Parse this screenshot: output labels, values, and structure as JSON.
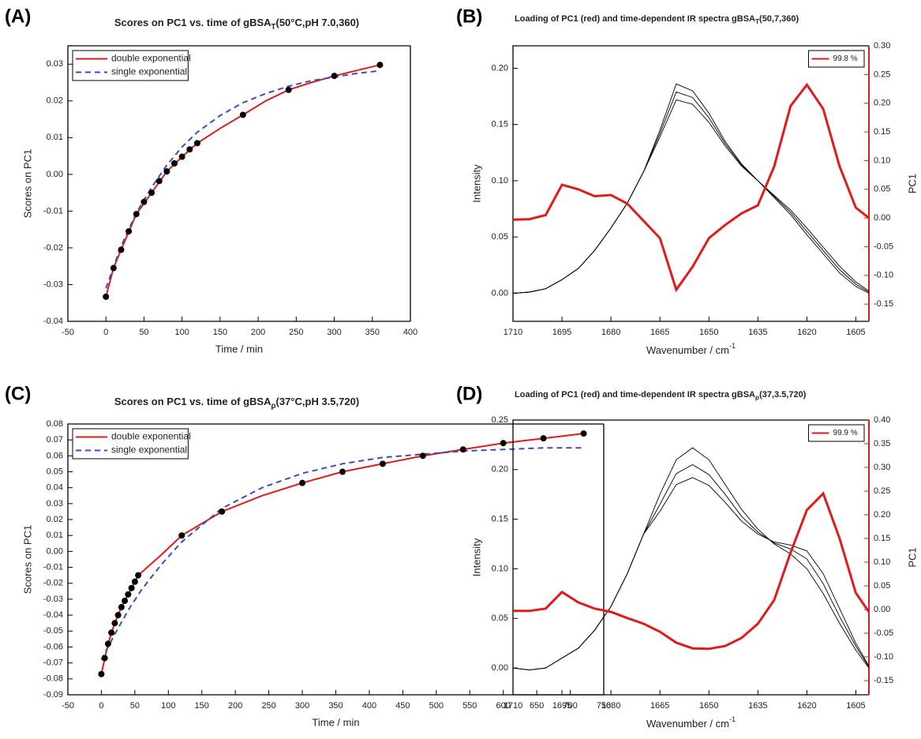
{
  "chart_data": [
    {
      "type": "scatter",
      "label": "(A)",
      "title_parts": [
        "Scores on PC1 vs. time of gBSA",
        "T",
        "(50°C,pH 7.0,360)"
      ],
      "xlabel": "Time / min",
      "ylabel": "Scores on PC1",
      "xlim": [
        -50,
        400
      ],
      "xticks": [
        -50,
        0,
        50,
        100,
        150,
        200,
        250,
        300,
        350,
        400
      ],
      "ylim": [
        -0.04,
        0.035
      ],
      "yticks": [
        -0.04,
        -0.03,
        -0.02,
        -0.01,
        {
          "value": 0,
          "label": "0.00"
        },
        0.01,
        0.02,
        0.03
      ],
      "legend": "upper left",
      "points": {
        "color": "#000000",
        "x": [
          0,
          10,
          20,
          30,
          40,
          50,
          60,
          70,
          80,
          90,
          100,
          110,
          120,
          180,
          240,
          300,
          360
        ],
        "values": [
          -0.0333,
          -0.0255,
          -0.0205,
          -0.0155,
          -0.0108,
          -0.0075,
          -0.005,
          -0.0018,
          0.0008,
          0.003,
          0.0048,
          0.0068,
          0.0085,
          0.0162,
          0.023,
          0.0268,
          0.0298
        ]
      },
      "series": [
        {
          "name": "double exponential",
          "color": "#e31a1c",
          "style": "solid",
          "x": [
            0,
            10,
            20,
            40,
            60,
            80,
            100,
            120,
            150,
            180,
            210,
            240,
            270,
            300,
            330,
            360
          ],
          "values": [
            -0.0333,
            -0.0255,
            -0.0205,
            -0.0108,
            -0.005,
            0.0008,
            0.0048,
            0.0085,
            0.0125,
            0.0162,
            0.02,
            0.023,
            0.025,
            0.0268,
            0.0283,
            0.0298
          ]
        },
        {
          "name": "single exponential",
          "color": "#3b4cc0",
          "style": "dashed",
          "x": [
            0,
            20,
            40,
            60,
            80,
            100,
            120,
            150,
            180,
            210,
            240,
            270,
            300,
            330,
            360
          ],
          "values": [
            -0.031,
            -0.0195,
            -0.0105,
            -0.0035,
            0.0025,
            0.0075,
            0.0115,
            0.016,
            0.0195,
            0.022,
            0.024,
            0.0255,
            0.0265,
            0.0275,
            0.0282
          ]
        }
      ]
    },
    {
      "type": "line",
      "label": "(B)",
      "title_parts": [
        "Loading of PC1 (red) and time-dependent IR spectra gBSA",
        "T",
        "(50,7,360)"
      ],
      "xlabel_parts": [
        "Wavenumber / cm",
        "-1"
      ],
      "ylabel": "Intensity",
      "y2label": "PC1",
      "y2_color": "#e31a1c",
      "x": [
        1710,
        1705,
        1700,
        1695,
        1690,
        1685,
        1680,
        1675,
        1670,
        1665,
        1660,
        1655,
        1650,
        1645,
        1640,
        1635,
        1630,
        1625,
        1620,
        1615,
        1610,
        1605,
        1601
      ],
      "xlim": [
        1710,
        1601
      ],
      "xticks": [
        1710,
        1695,
        1680,
        1665,
        1650,
        1635,
        1620,
        1605
      ],
      "ylim": [
        -0.025,
        0.22
      ],
      "yticks": [
        {
          "value": 0,
          "label": "0.00"
        },
        0.05,
        {
          "value": 0.1,
          "label": "0.10"
        },
        0.15,
        {
          "value": 0.2,
          "label": "0.20"
        }
      ],
      "y2lim": [
        -0.18,
        0.3
      ],
      "y2ticks": [
        -0.15,
        {
          "value": -0.1,
          "label": "-0.10"
        },
        -0.05,
        {
          "value": 0,
          "label": "0.00"
        },
        0.05,
        {
          "value": 0.1,
          "label": "0.10"
        },
        0.15,
        {
          "value": 0.2,
          "label": "0.20"
        },
        0.25,
        {
          "value": 0.3,
          "label": "0.30"
        }
      ],
      "legend": "upper right",
      "series": [
        {
          "color": "#000000",
          "values": [
            0,
            0.001,
            0.004,
            0.012,
            0.022,
            0.038,
            0.058,
            0.08,
            0.108,
            0.145,
            0.186,
            0.18,
            0.16,
            0.135,
            0.115,
            0.1,
            0.085,
            0.07,
            0.052,
            0.035,
            0.018,
            0.006,
            0
          ]
        },
        {
          "color": "#000000",
          "values": [
            0,
            0.001,
            0.004,
            0.012,
            0.022,
            0.038,
            0.058,
            0.08,
            0.108,
            0.142,
            0.179,
            0.174,
            0.156,
            0.133,
            0.114,
            0.1,
            0.086,
            0.072,
            0.055,
            0.038,
            0.021,
            0.008,
            0.001
          ]
        },
        {
          "color": "#000000",
          "values": [
            0,
            0.001,
            0.004,
            0.012,
            0.022,
            0.038,
            0.058,
            0.08,
            0.108,
            0.139,
            0.172,
            0.168,
            0.152,
            0.131,
            0.113,
            0.1,
            0.087,
            0.074,
            0.058,
            0.041,
            0.024,
            0.01,
            0.002
          ]
        },
        {
          "name": "99.8 %",
          "color": "#e31a1c",
          "axis": "y2",
          "values": [
            -0.003,
            -0.002,
            0.005,
            0.058,
            0.05,
            0.038,
            0.04,
            0.025,
            -0.005,
            -0.035,
            -0.125,
            -0.085,
            -0.035,
            -0.012,
            0.008,
            0.022,
            0.09,
            0.195,
            0.232,
            0.19,
            0.09,
            0.018,
            0
          ]
        }
      ]
    },
    {
      "type": "scatter",
      "label": "(C)",
      "title_parts": [
        "Scores on PC1 vs. time of gBSA",
        "ρ",
        "(37°C,pH 3.5,720)"
      ],
      "xlabel": "Time / min",
      "ylabel": "Scores on PC1",
      "xlim": [
        -50,
        750
      ],
      "xticks": [
        -50,
        0,
        50,
        100,
        150,
        200,
        250,
        300,
        350,
        400,
        450,
        500,
        550,
        600,
        650,
        700,
        750
      ],
      "ylim": [
        -0.09,
        0.08
      ],
      "yticks": [
        -0.09,
        -0.08,
        -0.07,
        -0.06,
        -0.05,
        -0.04,
        -0.03,
        -0.02,
        -0.01,
        {
          "value": 0,
          "label": "0.00"
        },
        0.01,
        0.02,
        0.03,
        0.04,
        0.05,
        0.06,
        0.07,
        0.08
      ],
      "legend": "upper left",
      "points": {
        "color": "#000000",
        "x": [
          0,
          5,
          10,
          15,
          20,
          25,
          30,
          35,
          40,
          45,
          50,
          55,
          120,
          180,
          300,
          360,
          420,
          480,
          540,
          600,
          660,
          720
        ],
        "values": [
          -0.077,
          -0.067,
          -0.058,
          -0.051,
          -0.045,
          -0.04,
          -0.035,
          -0.031,
          -0.027,
          -0.023,
          -0.019,
          -0.015,
          0.01,
          0.025,
          0.043,
          0.05,
          0.055,
          0.06,
          0.064,
          0.068,
          0.071,
          0.074
        ]
      },
      "series": [
        {
          "name": "double exponential",
          "color": "#e31a1c",
          "style": "solid",
          "x": [
            0,
            10,
            20,
            30,
            40,
            55,
            90,
            120,
            180,
            240,
            300,
            360,
            420,
            480,
            540,
            600,
            660,
            720
          ],
          "values": [
            -0.077,
            -0.058,
            -0.045,
            -0.035,
            -0.027,
            -0.015,
            -0.002,
            0.01,
            0.025,
            0.035,
            0.043,
            0.05,
            0.055,
            0.06,
            0.064,
            0.068,
            0.071,
            0.074
          ]
        },
        {
          "name": "single exponential",
          "color": "#3b4cc0",
          "style": "dashed",
          "x": [
            0,
            20,
            40,
            60,
            90,
            120,
            180,
            240,
            300,
            360,
            420,
            480,
            540,
            600,
            660,
            720
          ],
          "values": [
            -0.068,
            -0.052,
            -0.037,
            -0.024,
            -0.008,
            0.006,
            0.027,
            0.04,
            0.049,
            0.055,
            0.059,
            0.061,
            0.063,
            0.064,
            0.065,
            0.065
          ]
        }
      ]
    },
    {
      "type": "line",
      "label": "(D)",
      "title_parts": [
        "Loading of PC1 (red) and time-dependent IR spectra gBSA",
        "ρ",
        "(37,3.5,720)"
      ],
      "xlabel_parts": [
        "Wavenumber / cm",
        "-1"
      ],
      "ylabel": "Intensity",
      "y2label": "PC1",
      "y2_color": "#e31a1c",
      "x": [
        1710,
        1705,
        1700,
        1695,
        1690,
        1685,
        1680,
        1675,
        1670,
        1665,
        1660,
        1655,
        1650,
        1645,
        1640,
        1635,
        1630,
        1625,
        1620,
        1615,
        1610,
        1605,
        1601
      ],
      "xlim": [
        1710,
        1601
      ],
      "xticks": [
        1710,
        1695,
        1680,
        1665,
        1650,
        1635,
        1620,
        1605
      ],
      "ylim": [
        -0.027,
        0.25
      ],
      "yticks": [
        {
          "value": 0,
          "label": "0.00"
        },
        0.05,
        {
          "value": 0.1,
          "label": "0.10"
        },
        0.15,
        {
          "value": 0.2,
          "label": "0.20"
        },
        0.25
      ],
      "y2lim": [
        -0.18,
        0.4
      ],
      "y2ticks": [
        -0.15,
        {
          "value": -0.1,
          "label": "-0.10"
        },
        -0.05,
        {
          "value": 0,
          "label": "0.00"
        },
        0.05,
        {
          "value": 0.1,
          "label": "0.10"
        },
        0.15,
        {
          "value": 0.2,
          "label": "0.20"
        },
        0.25,
        {
          "value": 0.3,
          "label": "0.30"
        },
        0.35,
        {
          "value": 0.4,
          "label": "0.40"
        }
      ],
      "legend": "upper right",
      "series": [
        {
          "color": "#000000",
          "values": [
            0,
            -0.002,
            0,
            0.01,
            0.02,
            0.038,
            0.062,
            0.095,
            0.135,
            0.175,
            0.21,
            0.222,
            0.21,
            0.185,
            0.16,
            0.14,
            0.125,
            0.115,
            0.1,
            0.075,
            0.045,
            0.018,
            0
          ]
        },
        {
          "color": "#000000",
          "values": [
            0,
            -0.002,
            0,
            0.01,
            0.02,
            0.038,
            0.062,
            0.095,
            0.135,
            0.165,
            0.196,
            0.205,
            0.195,
            0.175,
            0.153,
            0.137,
            0.126,
            0.12,
            0.11,
            0.085,
            0.052,
            0.022,
            0.001
          ]
        },
        {
          "color": "#000000",
          "values": [
            0,
            -0.002,
            0,
            0.01,
            0.02,
            0.038,
            0.062,
            0.095,
            0.135,
            0.158,
            0.185,
            0.192,
            0.184,
            0.167,
            0.148,
            0.135,
            0.127,
            0.124,
            0.118,
            0.095,
            0.06,
            0.025,
            0.002
          ]
        },
        {
          "name": "99.9 %",
          "color": "#e31a1c",
          "axis": "y2",
          "values": [
            -0.003,
            -0.003,
            0.002,
            0.037,
            0.015,
            0.002,
            -0.005,
            -0.018,
            -0.03,
            -0.047,
            -0.07,
            -0.082,
            -0.083,
            -0.077,
            -0.06,
            -0.03,
            0.02,
            0.12,
            0.21,
            0.245,
            0.15,
            0.035,
            -0.005
          ]
        }
      ]
    }
  ]
}
